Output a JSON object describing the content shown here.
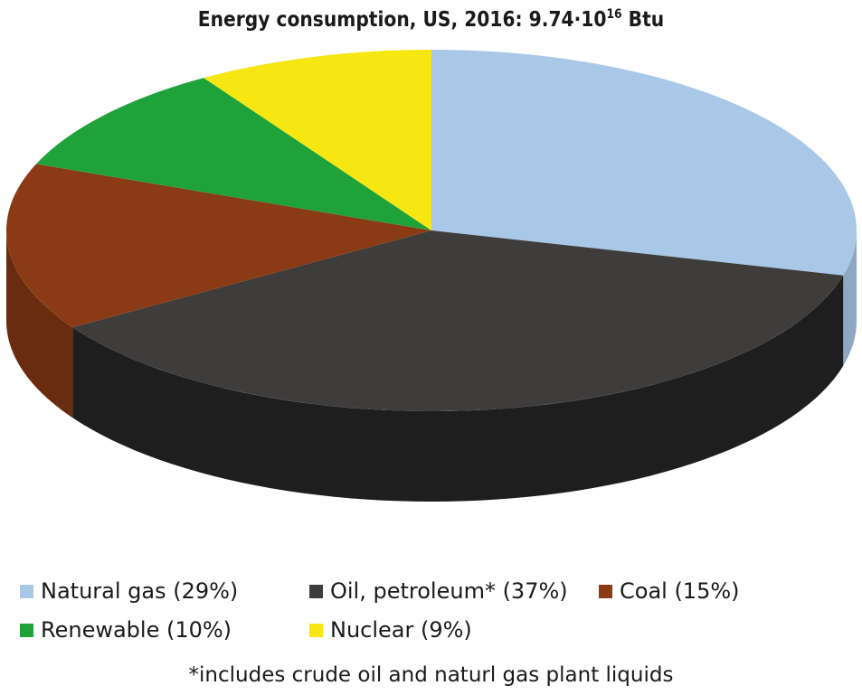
{
  "chart_data": {
    "type": "pie",
    "title_main": "Energy consumption, US, 2016: 9.74·10",
    "title_exponent": "16",
    "title_unit": " Btu",
    "slices": [
      {
        "label": "Natural gas (29%)",
        "name": "Natural gas",
        "value": 29,
        "color": "#a9c8e7",
        "side_color": "#8ea8c4"
      },
      {
        "label": "Oil, petroleum* (37%)",
        "name": "Oil, petroleum*",
        "value": 37,
        "color": "#3f3c3c",
        "side_color": "#1f1e1e"
      },
      {
        "label": "Coal (15%)",
        "name": "Coal",
        "value": 15,
        "color": "#8a3b15",
        "side_color": "#6a2c0f"
      },
      {
        "label": "Renewable (10%)",
        "name": "Renewable",
        "value": 10,
        "color": "#1fa23a",
        "side_color": "#16772b"
      },
      {
        "label": "Nuclear (9%)",
        "name": "Nuclear",
        "value": 9,
        "color": "#f6e611",
        "side_color": "#c7b90c"
      }
    ],
    "footnote": "*includes crude oil and naturl gas plant liquids"
  }
}
